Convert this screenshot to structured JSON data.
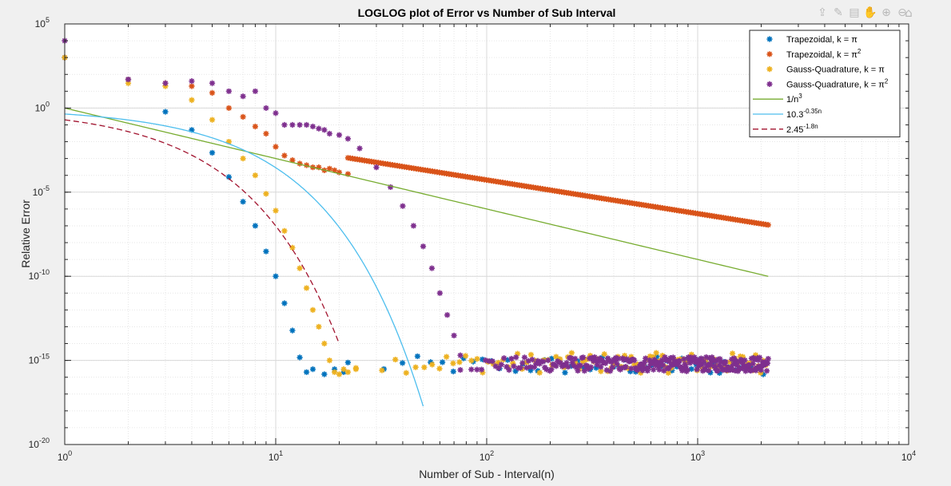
{
  "toolbar": {
    "icons": [
      "export-icon",
      "brush-icon",
      "datatip-icon",
      "pan-icon",
      "zoom-in-icon",
      "zoom-out-icon",
      "home-icon"
    ]
  },
  "chart_data": {
    "type": "scatter",
    "title": "LOGLOG plot of Error vs Number of Sub Interval",
    "xlabel": "Number of Sub - Interval(n)",
    "ylabel": "Relative Error",
    "xscale": "log",
    "yscale": "log",
    "xlim": [
      1,
      10000
    ],
    "ylim": [
      1e-20,
      100000
    ],
    "grid": true,
    "minor_grid": true,
    "legend_position": "top-right",
    "x_ticks": [
      {
        "value": 1,
        "base": "10",
        "exp": "0"
      },
      {
        "value": 10,
        "base": "10",
        "exp": "1"
      },
      {
        "value": 100,
        "base": "10",
        "exp": "2"
      },
      {
        "value": 1000,
        "base": "10",
        "exp": "3"
      },
      {
        "value": 10000,
        "base": "10",
        "exp": "4"
      }
    ],
    "y_ticks": [
      {
        "value": 1e-20,
        "base": "10",
        "exp": "-20"
      },
      {
        "value": 1e-15,
        "base": "10",
        "exp": "-15"
      },
      {
        "value": 1e-10,
        "base": "10",
        "exp": "-10"
      },
      {
        "value": 1e-05,
        "base": "10",
        "exp": "-5"
      },
      {
        "value": 1,
        "base": "10",
        "exp": "0"
      },
      {
        "value": 100000,
        "base": "10",
        "exp": "5"
      }
    ],
    "series": [
      {
        "name_base": "Trapezoidal, k = π",
        "name_sup": "",
        "kind": "markers",
        "marker": "*",
        "color": "#0072BD",
        "points": [
          [
            1,
            1000
          ],
          [
            2,
            50
          ],
          [
            3,
            0.6
          ],
          [
            4,
            0.05
          ],
          [
            5,
            0.0022
          ],
          [
            6,
            8e-05
          ],
          [
            7,
            2.7e-06
          ],
          [
            8,
            1e-07
          ],
          [
            9,
            3e-09
          ],
          [
            10,
            1e-10
          ],
          [
            11,
            2.5e-12
          ],
          [
            12,
            6e-14
          ],
          [
            13,
            1.5e-15
          ],
          [
            14,
            2e-16
          ],
          [
            15,
            3e-16
          ],
          [
            17,
            1.5e-16
          ],
          [
            19,
            3e-16
          ],
          [
            21,
            2e-16
          ]
        ],
        "noise": {
          "n_start": 22,
          "n_end": 2048,
          "count": 60,
          "log_min": -15.85,
          "log_max": -14.75
        }
      },
      {
        "name_base": "Trapezoidal, k = π",
        "name_sup": "2",
        "kind": "markers",
        "marker": "*",
        "color": "#D95319",
        "points": [
          [
            1,
            1000
          ],
          [
            2,
            50
          ],
          [
            3,
            30
          ],
          [
            4,
            20
          ],
          [
            5,
            8
          ],
          [
            6,
            1
          ],
          [
            7,
            0.3
          ],
          [
            8,
            0.08
          ],
          [
            9,
            0.03
          ],
          [
            10,
            0.005
          ],
          [
            11,
            0.0015
          ],
          [
            12,
            0.0008
          ],
          [
            13,
            0.0005
          ],
          [
            14,
            0.0004
          ],
          [
            15,
            0.0003
          ],
          [
            16,
            0.0003
          ],
          [
            17,
            0.0002
          ],
          [
            18,
            0.00025
          ],
          [
            19,
            0.0002
          ],
          [
            20,
            0.00015
          ],
          [
            22,
            0.00012
          ]
        ],
        "power_law": {
          "n_start": 22,
          "n_end": 2160,
          "count": 180,
          "coef": 0.53,
          "exp": -2
        }
      },
      {
        "name_base": "Gauss-Quadrature, k = π",
        "name_sup": "",
        "kind": "markers",
        "marker": "*",
        "color": "#EDB120",
        "points": [
          [
            1,
            1000
          ],
          [
            2,
            30
          ],
          [
            3,
            20
          ],
          [
            4,
            3
          ],
          [
            5,
            0.2
          ],
          [
            6,
            0.01
          ],
          [
            7,
            0.001
          ],
          [
            8,
            0.0001
          ],
          [
            9,
            8e-06
          ],
          [
            10,
            8e-07
          ],
          [
            11,
            5e-08
          ],
          [
            12,
            5e-09
          ],
          [
            13,
            3e-10
          ],
          [
            14,
            2e-11
          ],
          [
            15,
            1e-12
          ],
          [
            16,
            1e-13
          ],
          [
            17,
            1e-14
          ],
          [
            18,
            1e-15
          ],
          [
            19,
            2e-16
          ],
          [
            20,
            1.5e-16
          ],
          [
            21,
            3e-16
          ],
          [
            22,
            2e-16
          ],
          [
            24,
            3e-16
          ]
        ],
        "noise": {
          "n_start": 24,
          "n_end": 2100,
          "count": 100,
          "log_min": -15.75,
          "log_max": -14.55
        }
      },
      {
        "name_base": "Gauss-Quadrature, k = π",
        "name_sup": "2",
        "kind": "markers",
        "marker": "*",
        "color": "#7E2F8E",
        "points": [
          [
            1,
            10000
          ],
          [
            2,
            50
          ],
          [
            3,
            30
          ],
          [
            4,
            40
          ],
          [
            5,
            30
          ],
          [
            6,
            10
          ],
          [
            7,
            5
          ],
          [
            8,
            10
          ],
          [
            9,
            1
          ],
          [
            10,
            0.5
          ],
          [
            11,
            0.1
          ],
          [
            12,
            0.1
          ],
          [
            13,
            0.1
          ],
          [
            14,
            0.1
          ],
          [
            15,
            0.08
          ],
          [
            16,
            0.06
          ],
          [
            17,
            0.05
          ],
          [
            18,
            0.03
          ],
          [
            20,
            0.025
          ],
          [
            22,
            0.015
          ],
          [
            25,
            0.004
          ],
          [
            30,
            0.0003
          ],
          [
            35,
            2e-05
          ],
          [
            40,
            1.5e-06
          ],
          [
            45,
            1e-07
          ],
          [
            50,
            6e-09
          ],
          [
            55,
            3e-10
          ],
          [
            60,
            1e-11
          ],
          [
            65,
            5e-13
          ],
          [
            70,
            3e-14
          ],
          [
            75,
            2e-15
          ]
        ],
        "noise": {
          "n_start": 75,
          "n_end": 2160,
          "count": 260,
          "log_min": -15.65,
          "log_max": -14.8
        }
      },
      {
        "name_base": "1/n",
        "name_sup": "3",
        "kind": "line",
        "style": "solid",
        "color": "#77AC30",
        "formula": "power",
        "coef": 1,
        "exp": -3,
        "n_start": 1,
        "n_end": 2160
      },
      {
        "name_base": "10.3",
        "name_sup": "-0.35n",
        "kind": "line",
        "style": "solid",
        "color": "#4DBEEE",
        "formula": "exponential",
        "base": 10.3,
        "rate": -0.35,
        "n_start": 1,
        "n_end": 50
      },
      {
        "name_base": "2.45",
        "name_sup": "-1.8n",
        "kind": "line",
        "style": "dashed",
        "color": "#A2142F",
        "formula": "exponential",
        "base": 2.45,
        "rate": -1.8,
        "n_start": 1,
        "n_end": 20
      }
    ]
  }
}
